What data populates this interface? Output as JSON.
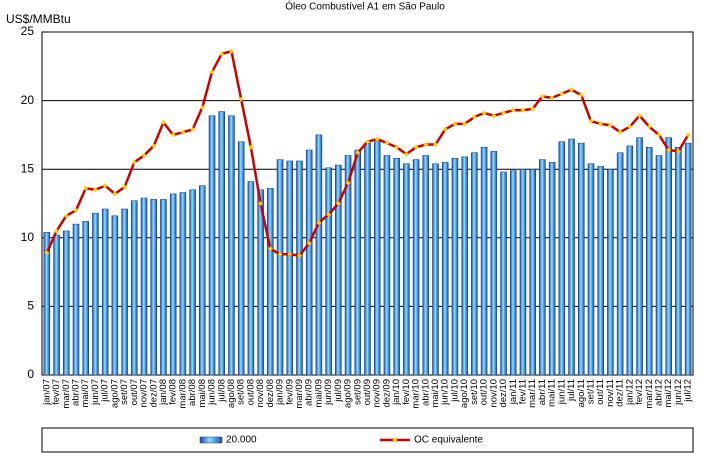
{
  "chart_data": {
    "type": "bar-line",
    "title": "Óleo Combustível A1 em São Paulo",
    "y_label": "US$/MMBtu",
    "categories": [
      "jan/07",
      "fev/07",
      "mar/07",
      "abr/07",
      "mai/07",
      "jun/07",
      "jul/07",
      "ago/07",
      "set/07",
      "out/07",
      "nov/07",
      "dez/07",
      "jan/08",
      "fev/08",
      "mar/08",
      "abr/08",
      "mai/08",
      "jun/08",
      "jul/08",
      "ago/08",
      "set/08",
      "out/08",
      "nov/08",
      "dez/08",
      "jan/09",
      "fev/09",
      "mar/09",
      "abr/09",
      "mai/09",
      "jun/09",
      "jul/09",
      "ago/09",
      "set/09",
      "out/09",
      "nov/09",
      "dez/09",
      "jan/10",
      "fev/10",
      "mar/10",
      "abr/10",
      "mai/10",
      "jun/10",
      "jul/10",
      "ago/10",
      "set/10",
      "out/10",
      "nov/10",
      "dez/10",
      "jan/11",
      "fev/11",
      "mar/11",
      "abr/11",
      "mai/11",
      "jun/11",
      "jul/11",
      "ago/11",
      "set/11",
      "out/11",
      "nov/11",
      "dez/11",
      "jan/12",
      "fev/12",
      "mar/12",
      "abr/12",
      "mai/12",
      "jun/12",
      "jul/12"
    ],
    "series": [
      {
        "name": "20.000",
        "kind": "bar",
        "color": "#1f4fb0",
        "values": [
          10.4,
          10.2,
          10.5,
          11.0,
          11.2,
          11.8,
          12.1,
          11.6,
          12.1,
          12.7,
          12.9,
          12.8,
          12.8,
          13.2,
          13.3,
          13.5,
          13.8,
          18.9,
          19.2,
          18.9,
          17.0,
          14.1,
          13.5,
          13.6,
          15.7,
          15.6,
          15.6,
          16.4,
          17.5,
          15.1,
          15.3,
          16.0,
          16.4,
          16.9,
          17.0,
          16.0,
          15.8,
          15.4,
          15.7,
          16.0,
          15.4,
          15.5,
          15.8,
          15.9,
          16.2,
          16.6,
          16.3,
          14.8,
          14.9,
          15.0,
          15.0,
          15.7,
          15.5,
          17.0,
          17.2,
          16.9,
          15.4,
          15.2,
          15.0,
          16.2,
          16.7,
          17.3,
          16.6,
          16.0,
          17.3,
          16.6,
          16.9
        ]
      },
      {
        "name": "OC equivalente",
        "kind": "line",
        "color": "#cc0000",
        "marker_color": "#ffcc00",
        "values": [
          8.9,
          10.5,
          11.6,
          12.0,
          13.6,
          13.5,
          13.8,
          13.2,
          13.7,
          15.5,
          16.0,
          16.7,
          18.4,
          17.5,
          17.7,
          17.9,
          19.5,
          22.1,
          23.4,
          23.6,
          20.1,
          16.6,
          12.5,
          9.2,
          8.8,
          8.8,
          8.7,
          9.6,
          11.1,
          11.7,
          12.5,
          14.0,
          16.2,
          17.0,
          17.2,
          16.9,
          16.6,
          16.1,
          16.6,
          16.8,
          16.8,
          17.9,
          18.3,
          18.3,
          18.8,
          19.1,
          18.9,
          19.1,
          19.3,
          19.3,
          19.4,
          20.3,
          20.2,
          20.5,
          20.8,
          20.4,
          18.5,
          18.3,
          18.2,
          17.7,
          18.1,
          18.9,
          18.1,
          17.5,
          16.4,
          16.3,
          17.5
        ]
      }
    ],
    "ylim": [
      0,
      25
    ],
    "yticks": [
      0,
      5,
      10,
      15,
      20,
      25
    ],
    "grid": true,
    "legend": "bottom"
  }
}
